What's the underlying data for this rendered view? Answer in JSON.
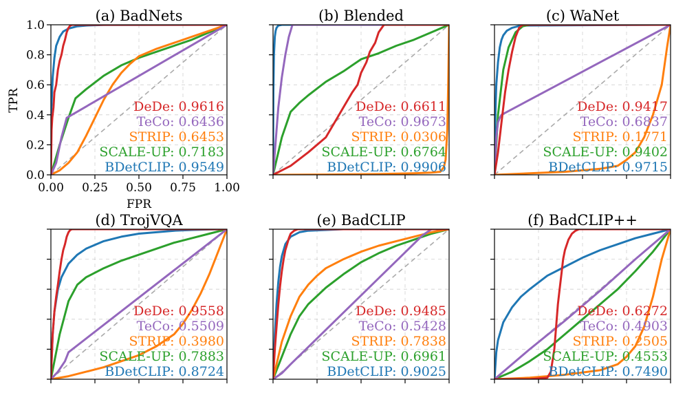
{
  "figure": {
    "xlabel": "FPR",
    "ylabel": "TPR",
    "method_colors": {
      "DeDe": "#d62728",
      "TeCo": "#9467bd",
      "STRIP": "#ff7f0e",
      "SCALE-UP": "#2ca02c",
      "BDetCLIP": "#1f77b4"
    },
    "legend_order": [
      "DeDe",
      "TeCo",
      "STRIP",
      "SCALE-UP",
      "BDetCLIP"
    ]
  },
  "chart_data": [
    {
      "type": "line",
      "title": "(a) BadNets",
      "xlabel": "FPR",
      "ylabel": "TPR",
      "xlim": [
        0,
        1
      ],
      "ylim": [
        0,
        1
      ],
      "xticks": [
        "0.00",
        "0.25",
        "0.50",
        "0.75",
        "1.00"
      ],
      "yticks": [
        "0.0",
        "0.2",
        "0.4",
        "0.6",
        "0.8",
        "1.0"
      ],
      "diagonal": true,
      "series": [
        {
          "name": "BDetCLIP",
          "label": "BDetCLIP: 0.9549",
          "auc": 0.9549,
          "x": [
            0,
            0.003,
            0.01,
            0.02,
            0.03,
            0.05,
            0.07,
            0.1,
            0.15,
            0.2,
            0.3,
            1.0
          ],
          "y": [
            0,
            0.45,
            0.65,
            0.78,
            0.86,
            0.92,
            0.955,
            0.975,
            0.99,
            0.995,
            0.999,
            1.0
          ]
        },
        {
          "name": "SCALE-UP",
          "label": "SCALE-UP: 0.7183",
          "auc": 0.7183,
          "x": [
            0,
            0.05,
            0.1,
            0.14,
            0.2,
            0.3,
            0.4,
            0.5,
            0.6,
            0.7,
            0.8,
            0.9,
            1.0
          ],
          "y": [
            0,
            0.2,
            0.38,
            0.51,
            0.57,
            0.66,
            0.73,
            0.78,
            0.82,
            0.86,
            0.9,
            0.95,
            1.0
          ]
        },
        {
          "name": "STRIP",
          "label": "STRIP: 0.6453",
          "auc": 0.6453,
          "x": [
            0,
            0.05,
            0.1,
            0.15,
            0.2,
            0.25,
            0.3,
            0.35,
            0.4,
            0.45,
            0.5,
            0.6,
            0.7,
            0.8,
            0.9,
            1.0
          ],
          "y": [
            0,
            0.03,
            0.08,
            0.15,
            0.26,
            0.38,
            0.5,
            0.6,
            0.68,
            0.74,
            0.79,
            0.84,
            0.88,
            0.92,
            0.96,
            1.0
          ]
        },
        {
          "name": "TeCo",
          "label": "TeCo: 0.6436",
          "auc": 0.6436,
          "x": [
            0,
            0.03,
            0.06,
            0.09,
            1.0
          ],
          "y": [
            0,
            0.08,
            0.25,
            0.38,
            1.0
          ]
        },
        {
          "name": "DeDe",
          "label": "DeDe: 0.9616",
          "auc": 0.9616,
          "x": [
            0,
            0.004,
            0.008,
            0.015,
            0.02,
            0.03,
            0.04,
            0.05,
            0.06,
            0.07,
            0.08,
            0.09,
            0.1,
            0.11,
            0.12,
            1.0
          ],
          "y": [
            0,
            0.3,
            0.38,
            0.45,
            0.55,
            0.6,
            0.7,
            0.76,
            0.8,
            0.86,
            0.9,
            0.95,
            0.98,
            0.995,
            1.0,
            1.0
          ]
        }
      ]
    },
    {
      "type": "line",
      "title": "(b) Blended",
      "xlim": [
        0,
        1
      ],
      "ylim": [
        0,
        1
      ],
      "diagonal": true,
      "series": [
        {
          "name": "BDetCLIP",
          "label": "BDetCLIP: 0.9906",
          "auc": 0.9906,
          "x": [
            0,
            0.002,
            0.005,
            0.01,
            0.015,
            0.02,
            0.03,
            0.05,
            1.0
          ],
          "y": [
            0,
            0.55,
            0.8,
            0.92,
            0.96,
            0.98,
            0.995,
            1.0,
            1.0
          ]
        },
        {
          "name": "SCALE-UP",
          "label": "SCALE-UP: 0.6764",
          "auc": 0.6764,
          "x": [
            0,
            0.05,
            0.1,
            0.15,
            0.2,
            0.3,
            0.4,
            0.5,
            0.6,
            0.7,
            0.8,
            0.9,
            1.0
          ],
          "y": [
            0,
            0.25,
            0.42,
            0.48,
            0.53,
            0.62,
            0.69,
            0.77,
            0.81,
            0.86,
            0.9,
            0.95,
            1.0
          ]
        },
        {
          "name": "STRIP",
          "label": "STRIP: 0.0306",
          "auc": 0.0306,
          "x": [
            0,
            0.3,
            0.6,
            0.8,
            0.9,
            0.95,
            0.97,
            0.98,
            0.99,
            0.995,
            1.0
          ],
          "y": [
            0,
            0.002,
            0.005,
            0.01,
            0.015,
            0.02,
            0.05,
            0.1,
            0.3,
            0.6,
            1.0
          ]
        },
        {
          "name": "TeCo",
          "label": "TeCo: 0.9673",
          "auc": 0.9673,
          "x": [
            0,
            0.01,
            0.03,
            0.05,
            0.07,
            0.09,
            0.11,
            1.0
          ],
          "y": [
            0,
            0.15,
            0.45,
            0.65,
            0.8,
            0.92,
            1.0,
            1.0
          ]
        },
        {
          "name": "DeDe",
          "label": "DeDe: 0.6611",
          "auc": 0.6611,
          "x": [
            0,
            0.1,
            0.2,
            0.3,
            0.35,
            0.4,
            0.45,
            0.48,
            0.5,
            0.53,
            0.55,
            0.58,
            0.6,
            0.63,
            1.0
          ],
          "y": [
            0,
            0.06,
            0.15,
            0.25,
            0.35,
            0.45,
            0.55,
            0.6,
            0.68,
            0.75,
            0.82,
            0.88,
            0.95,
            1.0,
            1.0
          ]
        }
      ]
    },
    {
      "type": "line",
      "title": "(c) WaNet",
      "xlim": [
        0,
        1
      ],
      "ylim": [
        0,
        1
      ],
      "diagonal": true,
      "series": [
        {
          "name": "BDetCLIP",
          "label": "BDetCLIP: 0.9715",
          "auc": 0.9715,
          "x": [
            0,
            0.005,
            0.01,
            0.02,
            0.03,
            0.04,
            0.05,
            0.07,
            0.1,
            0.15,
            1.0
          ],
          "y": [
            0,
            0.4,
            0.6,
            0.75,
            0.85,
            0.9,
            0.93,
            0.96,
            0.98,
            0.995,
            1.0
          ]
        },
        {
          "name": "SCALE-UP",
          "label": "SCALE-UP: 0.9402",
          "auc": 0.9402,
          "x": [
            0,
            0.02,
            0.05,
            0.08,
            0.12,
            0.16,
            0.2,
            1.0
          ],
          "y": [
            0,
            0.4,
            0.7,
            0.85,
            0.95,
            0.99,
            1.0,
            1.0
          ]
        },
        {
          "name": "STRIP",
          "label": "STRIP: 0.1771",
          "auc": 0.1771,
          "x": [
            0,
            0.2,
            0.4,
            0.6,
            0.7,
            0.75,
            0.8,
            0.85,
            0.9,
            0.95,
            0.98,
            1.0
          ],
          "y": [
            0,
            0.01,
            0.02,
            0.04,
            0.06,
            0.1,
            0.15,
            0.25,
            0.4,
            0.6,
            0.85,
            1.0
          ]
        },
        {
          "name": "TeCo",
          "label": "TeCo: 0.6837",
          "auc": 0.6837,
          "x": [
            0,
            0.01,
            0.02,
            0.03,
            0.04,
            1.0
          ],
          "y": [
            0,
            0.25,
            0.35,
            0.38,
            0.4,
            1.0
          ]
        },
        {
          "name": "DeDe",
          "label": "DeDe: 0.9417",
          "auc": 0.9417,
          "x": [
            0,
            0.02,
            0.04,
            0.06,
            0.08,
            0.1,
            0.12,
            0.14,
            0.16,
            1.0
          ],
          "y": [
            0,
            0.15,
            0.35,
            0.55,
            0.7,
            0.82,
            0.92,
            0.98,
            1.0,
            1.0
          ]
        }
      ]
    },
    {
      "type": "line",
      "title": "(d) TrojVQA",
      "xlim": [
        0,
        1
      ],
      "ylim": [
        0,
        1
      ],
      "diagonal": true,
      "series": [
        {
          "name": "BDetCLIP",
          "label": "BDetCLIP: 0.8724",
          "auc": 0.8724,
          "x": [
            0,
            0.01,
            0.02,
            0.04,
            0.06,
            0.1,
            0.15,
            0.2,
            0.3,
            0.4,
            0.5,
            0.6,
            0.7,
            0.8,
            0.9,
            1.0
          ],
          "y": [
            0,
            0.3,
            0.45,
            0.6,
            0.68,
            0.77,
            0.83,
            0.87,
            0.92,
            0.95,
            0.97,
            0.98,
            0.99,
            0.995,
            0.998,
            1.0
          ]
        },
        {
          "name": "SCALE-UP",
          "label": "SCALE-UP: 0.7883",
          "auc": 0.7883,
          "x": [
            0,
            0.05,
            0.1,
            0.15,
            0.2,
            0.3,
            0.4,
            0.5,
            0.6,
            0.7,
            0.8,
            0.9,
            1.0
          ],
          "y": [
            0,
            0.3,
            0.52,
            0.63,
            0.68,
            0.74,
            0.79,
            0.83,
            0.87,
            0.91,
            0.94,
            0.97,
            1.0
          ]
        },
        {
          "name": "STRIP",
          "label": "STRIP: 0.3980",
          "auc": 0.398,
          "x": [
            0,
            0.1,
            0.2,
            0.3,
            0.4,
            0.5,
            0.6,
            0.7,
            0.75,
            0.8,
            0.85,
            0.9,
            0.95,
            1.0
          ],
          "y": [
            0,
            0.02,
            0.05,
            0.08,
            0.12,
            0.16,
            0.22,
            0.3,
            0.37,
            0.46,
            0.57,
            0.7,
            0.85,
            1.0
          ]
        },
        {
          "name": "TeCo",
          "label": "TeCo: 0.5509",
          "auc": 0.5509,
          "x": [
            0,
            0.04,
            0.08,
            0.1,
            1.0
          ],
          "y": [
            0,
            0.05,
            0.12,
            0.18,
            1.0
          ]
        },
        {
          "name": "DeDe",
          "label": "DeDe: 0.9558",
          "auc": 0.9558,
          "x": [
            0,
            0.01,
            0.02,
            0.03,
            0.04,
            0.05,
            0.06,
            0.07,
            0.08,
            0.09,
            0.1,
            0.11,
            0.12,
            1.0
          ],
          "y": [
            0,
            0.3,
            0.45,
            0.55,
            0.63,
            0.72,
            0.8,
            0.86,
            0.9,
            0.95,
            0.98,
            0.995,
            1.0,
            1.0
          ]
        }
      ]
    },
    {
      "type": "line",
      "title": "(e) BadCLIP",
      "xlim": [
        0,
        1
      ],
      "ylim": [
        0,
        1
      ],
      "diagonal": true,
      "series": [
        {
          "name": "BDetCLIP",
          "label": "BDetCLIP: 0.9025",
          "auc": 0.9025,
          "x": [
            0,
            0.01,
            0.02,
            0.03,
            0.04,
            0.05,
            0.07,
            0.1,
            0.15,
            0.2,
            0.3,
            0.4,
            1.0
          ],
          "y": [
            0,
            0.3,
            0.5,
            0.65,
            0.75,
            0.82,
            0.9,
            0.95,
            0.98,
            0.99,
            0.995,
            1.0,
            1.0
          ]
        },
        {
          "name": "SCALE-UP",
          "label": "SCALE-UP: 0.6961",
          "auc": 0.6961,
          "x": [
            0,
            0.05,
            0.1,
            0.15,
            0.2,
            0.3,
            0.4,
            0.5,
            0.6,
            0.7,
            0.8,
            0.9,
            1.0
          ],
          "y": [
            0,
            0.15,
            0.3,
            0.42,
            0.5,
            0.61,
            0.7,
            0.78,
            0.84,
            0.89,
            0.93,
            0.97,
            1.0
          ]
        },
        {
          "name": "STRIP",
          "label": "STRIP: 0.7838",
          "auc": 0.7838,
          "x": [
            0,
            0.05,
            0.1,
            0.15,
            0.2,
            0.25,
            0.3,
            0.4,
            0.5,
            0.6,
            0.7,
            0.8,
            0.9,
            1.0
          ],
          "y": [
            0,
            0.25,
            0.42,
            0.55,
            0.63,
            0.69,
            0.74,
            0.8,
            0.85,
            0.89,
            0.92,
            0.95,
            0.98,
            1.0
          ]
        },
        {
          "name": "TeCo",
          "label": "TeCo: 0.5428",
          "auc": 0.5428,
          "x": [
            0,
            0.05,
            0.1,
            0.85,
            0.9,
            1.0
          ],
          "y": [
            0,
            0.04,
            0.1,
            0.96,
            1.0,
            1.0
          ]
        },
        {
          "name": "DeDe",
          "label": "DeDe: 0.9485",
          "auc": 0.9485,
          "x": [
            0,
            0.01,
            0.02,
            0.03,
            0.04,
            0.05,
            0.06,
            0.07,
            0.08,
            0.09,
            0.1,
            0.12,
            0.14,
            1.0
          ],
          "y": [
            0,
            0.2,
            0.35,
            0.5,
            0.62,
            0.72,
            0.8,
            0.86,
            0.9,
            0.94,
            0.97,
            0.99,
            1.0,
            1.0
          ]
        }
      ]
    },
    {
      "type": "line",
      "title": "(f) BadCLIP++",
      "xlim": [
        0,
        1
      ],
      "ylim": [
        0,
        1
      ],
      "diagonal": true,
      "series": [
        {
          "name": "BDetCLIP",
          "label": "BDetCLIP: 0.7490",
          "auc": 0.749,
          "x": [
            0,
            0.01,
            0.02,
            0.05,
            0.1,
            0.15,
            0.2,
            0.3,
            0.4,
            0.5,
            0.6,
            0.7,
            0.8,
            0.9,
            1.0
          ],
          "y": [
            0,
            0.18,
            0.26,
            0.38,
            0.48,
            0.55,
            0.6,
            0.69,
            0.75,
            0.81,
            0.86,
            0.9,
            0.94,
            0.97,
            1.0
          ]
        },
        {
          "name": "SCALE-UP",
          "label": "SCALE-UP: 0.4553",
          "auc": 0.4553,
          "x": [
            0,
            0.1,
            0.2,
            0.3,
            0.4,
            0.5,
            0.6,
            0.7,
            0.8,
            0.9,
            1.0
          ],
          "y": [
            0,
            0.05,
            0.12,
            0.2,
            0.3,
            0.4,
            0.5,
            0.6,
            0.72,
            0.85,
            1.0
          ]
        },
        {
          "name": "STRIP",
          "label": "STRIP: 0.2505",
          "auc": 0.2505,
          "x": [
            0,
            0.2,
            0.4,
            0.6,
            0.7,
            0.75,
            0.8,
            0.85,
            0.9,
            0.95,
            1.0
          ],
          "y": [
            0,
            0.01,
            0.03,
            0.06,
            0.1,
            0.15,
            0.22,
            0.35,
            0.55,
            0.8,
            1.0
          ]
        },
        {
          "name": "TeCo",
          "label": "TeCo: 0.4903",
          "auc": 0.4903,
          "x": [
            0,
            0.2,
            0.4,
            0.6,
            0.8,
            1.0
          ],
          "y": [
            0,
            0.2,
            0.39,
            0.59,
            0.8,
            1.0
          ]
        },
        {
          "name": "DeDe",
          "label": "DeDe: 0.6272",
          "auc": 0.6272,
          "x": [
            0,
            0.2,
            0.3,
            0.32,
            0.34,
            0.35,
            0.36,
            0.37,
            0.38,
            0.39,
            0.4,
            0.42,
            0.44,
            0.46,
            0.48,
            1.0
          ],
          "y": [
            0,
            0.0,
            0.01,
            0.05,
            0.2,
            0.35,
            0.5,
            0.6,
            0.7,
            0.8,
            0.86,
            0.93,
            0.97,
            0.99,
            1.0,
            1.0
          ]
        }
      ]
    }
  ]
}
